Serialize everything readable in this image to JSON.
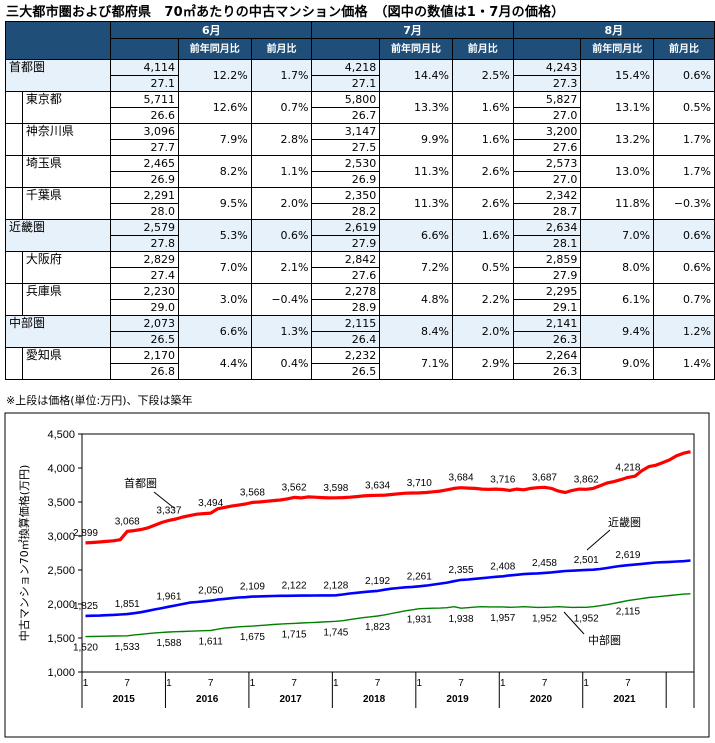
{
  "title": "三大都市圏および都府県　70㎡あたりの中古マンション価格　（図中の数値は1・7月の価格）",
  "table": {
    "months": [
      "6月",
      "7月",
      "8月"
    ],
    "sub_headers": [
      "前年同月比",
      "前月比"
    ],
    "rows": [
      {
        "name": "首都圏",
        "group": true,
        "cells": [
          [
            "4,114",
            "27.1",
            "12.2%",
            "1.7%"
          ],
          [
            "4,218",
            "27.1",
            "14.4%",
            "2.5%"
          ],
          [
            "4,243",
            "27.3",
            "15.4%",
            "0.6%"
          ]
        ]
      },
      {
        "name": "東京都",
        "group": false,
        "cells": [
          [
            "5,711",
            "26.6",
            "12.6%",
            "0.7%"
          ],
          [
            "5,800",
            "26.7",
            "13.3%",
            "1.6%"
          ],
          [
            "5,827",
            "27.0",
            "13.1%",
            "0.5%"
          ]
        ]
      },
      {
        "name": "神奈川県",
        "group": false,
        "cells": [
          [
            "3,096",
            "27.7",
            "7.9%",
            "2.8%"
          ],
          [
            "3,147",
            "27.5",
            "9.9%",
            "1.6%"
          ],
          [
            "3,200",
            "27.6",
            "13.2%",
            "1.7%"
          ]
        ]
      },
      {
        "name": "埼玉県",
        "group": false,
        "cells": [
          [
            "2,465",
            "26.9",
            "8.2%",
            "1.1%"
          ],
          [
            "2,530",
            "26.9",
            "11.3%",
            "2.6%"
          ],
          [
            "2,573",
            "27.0",
            "13.0%",
            "1.7%"
          ]
        ]
      },
      {
        "name": "千葉県",
        "group": false,
        "cells": [
          [
            "2,291",
            "28.0",
            "9.5%",
            "2.0%"
          ],
          [
            "2,350",
            "28.2",
            "11.3%",
            "2.6%"
          ],
          [
            "2,342",
            "28.7",
            "11.8%",
            "−0.3%"
          ]
        ]
      },
      {
        "name": "近畿圏",
        "group": true,
        "cells": [
          [
            "2,579",
            "27.8",
            "5.3%",
            "0.6%"
          ],
          [
            "2,619",
            "27.9",
            "6.6%",
            "1.6%"
          ],
          [
            "2,634",
            "28.1",
            "7.0%",
            "0.6%"
          ]
        ]
      },
      {
        "name": "大阪府",
        "group": false,
        "cells": [
          [
            "2,829",
            "27.4",
            "7.0%",
            "2.1%"
          ],
          [
            "2,842",
            "27.6",
            "7.2%",
            "0.5%"
          ],
          [
            "2,859",
            "27.9",
            "8.0%",
            "0.6%"
          ]
        ]
      },
      {
        "name": "兵庫県",
        "group": false,
        "cells": [
          [
            "2,230",
            "29.0",
            "3.0%",
            "−0.4%"
          ],
          [
            "2,278",
            "28.9",
            "4.8%",
            "2.2%"
          ],
          [
            "2,295",
            "29.1",
            "6.1%",
            "0.7%"
          ]
        ]
      },
      {
        "name": "中部圏",
        "group": true,
        "cells": [
          [
            "2,073",
            "26.5",
            "6.6%",
            "1.3%"
          ],
          [
            "2,115",
            "26.4",
            "8.4%",
            "2.0%"
          ],
          [
            "2,141",
            "26.3",
            "9.4%",
            "1.2%"
          ]
        ]
      },
      {
        "name": "愛知県",
        "group": false,
        "cells": [
          [
            "2,170",
            "26.8",
            "4.4%",
            "0.4%"
          ],
          [
            "2,232",
            "26.5",
            "7.1%",
            "2.9%"
          ],
          [
            "2,264",
            "26.3",
            "9.0%",
            "1.4%"
          ]
        ]
      }
    ]
  },
  "note": "※上段は価格(単位:万円)、下段は築年",
  "chart_data": {
    "type": "line",
    "ylabel": "中古マンション70㎡換算価格(万円)",
    "ylim": [
      1000,
      4500
    ],
    "yticks": [
      "1,000",
      "1,500",
      "2,000",
      "2,500",
      "3,000",
      "3,500",
      "4,000",
      "4,500"
    ],
    "x_month_labels": [
      "1",
      "7",
      "1",
      "7",
      "1",
      "7",
      "1",
      "7",
      "1",
      "7",
      "1",
      "7",
      "1",
      "7"
    ],
    "x_year_labels": [
      "2015",
      "2016",
      "2017",
      "2018",
      "2019",
      "2020",
      "2021"
    ],
    "x_start": "2015-01",
    "series": [
      {
        "name": "首都圏",
        "color": "#ff0000",
        "values": [
          2899,
          2905,
          2912,
          2920,
          2930,
          2945,
          3068,
          3080,
          3095,
          3120,
          3160,
          3200,
          3230,
          3250,
          3280,
          3300,
          3320,
          3330,
          3337,
          3400,
          3420,
          3440,
          3455,
          3470,
          3494,
          3500,
          3510,
          3520,
          3530,
          3545,
          3568,
          3560,
          3575,
          3570,
          3565,
          3560,
          3562,
          3565,
          3570,
          3580,
          3590,
          3595,
          3598,
          3600,
          3610,
          3620,
          3630,
          3632,
          3634,
          3640,
          3650,
          3660,
          3680,
          3700,
          3710,
          3705,
          3700,
          3690,
          3686,
          3690,
          3684,
          3670,
          3690,
          3680,
          3700,
          3710,
          3716,
          3700,
          3660,
          3640,
          3670,
          3690,
          3687,
          3700,
          3740,
          3780,
          3800,
          3830,
          3862,
          3880,
          3960,
          4020,
          4040,
          4080,
          4120,
          4180,
          4218,
          4240
        ]
      },
      {
        "name": "近畿圏",
        "color": "#0000ff",
        "values": [
          1825,
          1828,
          1830,
          1835,
          1840,
          1845,
          1851,
          1865,
          1880,
          1900,
          1920,
          1940,
          1961,
          1980,
          2000,
          2020,
          2030,
          2040,
          2050,
          2065,
          2075,
          2085,
          2095,
          2100,
          2109,
          2112,
          2115,
          2117,
          2120,
          2121,
          2122,
          2123,
          2124,
          2125,
          2126,
          2127,
          2128,
          2140,
          2155,
          2165,
          2175,
          2185,
          2192,
          2210,
          2225,
          2235,
          2245,
          2252,
          2261,
          2270,
          2285,
          2300,
          2315,
          2335,
          2355,
          2360,
          2370,
          2380,
          2390,
          2400,
          2408,
          2420,
          2430,
          2440,
          2445,
          2450,
          2458,
          2465,
          2475,
          2485,
          2490,
          2495,
          2501,
          2505,
          2515,
          2530,
          2545,
          2560,
          2570,
          2580,
          2590,
          2600,
          2610,
          2615,
          2619,
          2625,
          2630,
          2640
        ]
      },
      {
        "name": "中部圏",
        "color": "#008000",
        "values": [
          1520,
          1522,
          1525,
          1527,
          1529,
          1531,
          1533,
          1545,
          1555,
          1565,
          1575,
          1582,
          1588,
          1592,
          1596,
          1600,
          1605,
          1608,
          1611,
          1630,
          1645,
          1655,
          1665,
          1670,
          1675,
          1682,
          1690,
          1698,
          1705,
          1710,
          1715,
          1720,
          1725,
          1730,
          1735,
          1740,
          1745,
          1755,
          1770,
          1785,
          1800,
          1812,
          1823,
          1840,
          1860,
          1880,
          1900,
          1915,
          1931,
          1935,
          1938,
          1940,
          1945,
          1960,
          1938,
          1945,
          1955,
          1960,
          1958,
          1957,
          1957,
          1952,
          1955,
          1960,
          1955,
          1950,
          1952,
          1955,
          1960,
          1955,
          1950,
          1952,
          1952,
          1960,
          1975,
          1990,
          2010,
          2030,
          2050,
          2065,
          2080,
          2095,
          2105,
          2115,
          2125,
          2135,
          2145,
          2150
        ]
      }
    ],
    "labels": {
      "首都圏": [
        "2,899",
        "3,068",
        "3,337",
        "3,494",
        "3,568",
        "3,562",
        "3,598",
        "3,634",
        "3,710",
        "3,684",
        "3,716",
        "3,687",
        "3,862",
        "4,218"
      ],
      "近畿圏": [
        "1,825",
        "1,851",
        "1,961",
        "2,050",
        "2,109",
        "2,122",
        "2,128",
        "2,192",
        "2,261",
        "2,355",
        "2,408",
        "2,458",
        "2,501",
        "2,619"
      ],
      "中部圏": [
        "1,520",
        "1,533",
        "1,588",
        "1,611",
        "1,675",
        "1,715",
        "1,745",
        "1,823",
        "1,931",
        "1,938",
        "1,957",
        "1,952",
        "1,952",
        "2,115"
      ]
    }
  }
}
